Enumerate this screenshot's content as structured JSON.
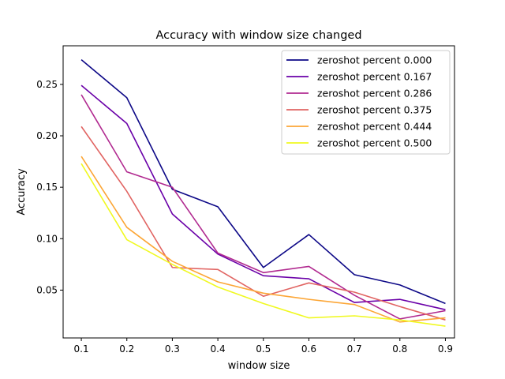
{
  "chart_data": {
    "type": "line",
    "title": "Accuracy with window size changed",
    "xlabel": "window size",
    "ylabel": "Accuracy",
    "x": [
      0.1,
      0.2,
      0.3,
      0.4,
      0.5,
      0.6,
      0.7,
      0.8,
      0.9
    ],
    "xticks": [
      "0.1",
      "0.2",
      "0.3",
      "0.4",
      "0.5",
      "0.6",
      "0.7",
      "0.8",
      "0.9"
    ],
    "yticks": [
      "0.05",
      "0.10",
      "0.15",
      "0.20",
      "0.25"
    ],
    "ytick_values": [
      0.05,
      0.1,
      0.15,
      0.2,
      0.25
    ],
    "xlim": [
      0.06,
      0.92
    ],
    "ylim": [
      0.0035,
      0.2875
    ],
    "grid": false,
    "legend_position": "top-right",
    "series": [
      {
        "name": "zeroshot percent 0.000",
        "color": "#0d0887",
        "values": [
          0.274,
          0.237,
          0.148,
          0.131,
          0.072,
          0.104,
          0.065,
          0.055,
          0.037
        ]
      },
      {
        "name": "zeroshot percent 0.167",
        "color": "#6a00a8",
        "values": [
          0.249,
          0.212,
          0.124,
          0.085,
          0.064,
          0.061,
          0.038,
          0.041,
          0.031
        ]
      },
      {
        "name": "zeroshot percent 0.286",
        "color": "#b12a90",
        "values": [
          0.24,
          0.165,
          0.15,
          0.086,
          0.067,
          0.073,
          0.045,
          0.022,
          0.03
        ]
      },
      {
        "name": "zeroshot percent 0.375",
        "color": "#e16462",
        "values": [
          0.209,
          0.146,
          0.072,
          0.07,
          0.044,
          0.057,
          0.048,
          0.034,
          0.021
        ]
      },
      {
        "name": "zeroshot percent 0.444",
        "color": "#fca636",
        "values": [
          0.18,
          0.111,
          0.078,
          0.058,
          0.047,
          0.041,
          0.036,
          0.019,
          0.023
        ]
      },
      {
        "name": "zeroshot percent 0.500",
        "color": "#f0f921",
        "values": [
          0.173,
          0.099,
          0.075,
          0.053,
          0.037,
          0.023,
          0.025,
          0.021,
          0.015
        ]
      }
    ]
  }
}
